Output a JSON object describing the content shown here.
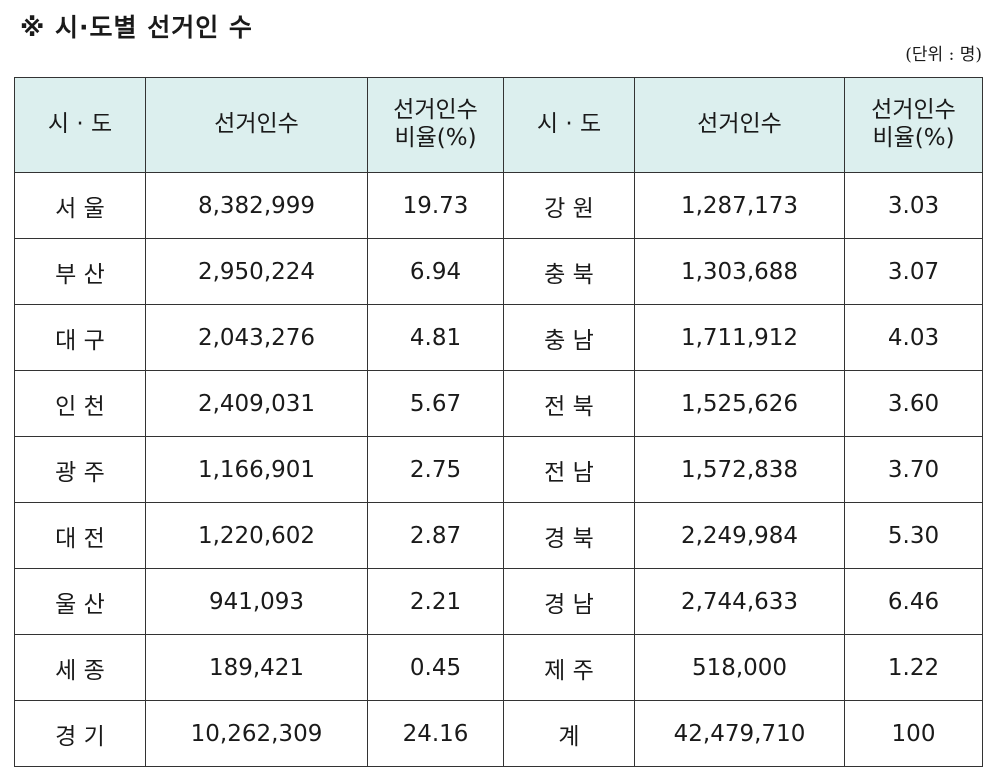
{
  "title": "※ 시·도별 선거인 수",
  "unit": "(단위 : 명)",
  "table": {
    "headers": {
      "region": "시 · 도",
      "voters": "선거인수",
      "ratio_line1": "선거인수",
      "ratio_line2": "비율(%)"
    },
    "rows": [
      {
        "r1": "서 울",
        "v1": "8,382,999",
        "p1": "19.73",
        "r2": "강 원",
        "v2": "1,287,173",
        "p2": "3.03"
      },
      {
        "r1": "부 산",
        "v1": "2,950,224",
        "p1": "6.94",
        "r2": "충 북",
        "v2": "1,303,688",
        "p2": "3.07"
      },
      {
        "r1": "대 구",
        "v1": "2,043,276",
        "p1": "4.81",
        "r2": "충 남",
        "v2": "1,711,912",
        "p2": "4.03"
      },
      {
        "r1": "인 천",
        "v1": "2,409,031",
        "p1": "5.67",
        "r2": "전 북",
        "v2": "1,525,626",
        "p2": "3.60"
      },
      {
        "r1": "광 주",
        "v1": "1,166,901",
        "p1": "2.75",
        "r2": "전 남",
        "v2": "1,572,838",
        "p2": "3.70"
      },
      {
        "r1": "대 전",
        "v1": "1,220,602",
        "p1": "2.87",
        "r2": "경 북",
        "v2": "2,249,984",
        "p2": "5.30"
      },
      {
        "r1": "울 산",
        "v1": "941,093",
        "p1": "2.21",
        "r2": "경 남",
        "v2": "2,744,633",
        "p2": "6.46"
      },
      {
        "r1": "세 종",
        "v1": "189,421",
        "p1": "0.45",
        "r2": "제 주",
        "v2": "518,000",
        "p2": "1.22"
      },
      {
        "r1": "경 기",
        "v1": "10,262,309",
        "p1": "24.16",
        "r2": "계",
        "v2": "42,479,710",
        "p2": "100"
      }
    ]
  },
  "colors": {
    "header_background": "#dcefee",
    "border": "#333333"
  }
}
